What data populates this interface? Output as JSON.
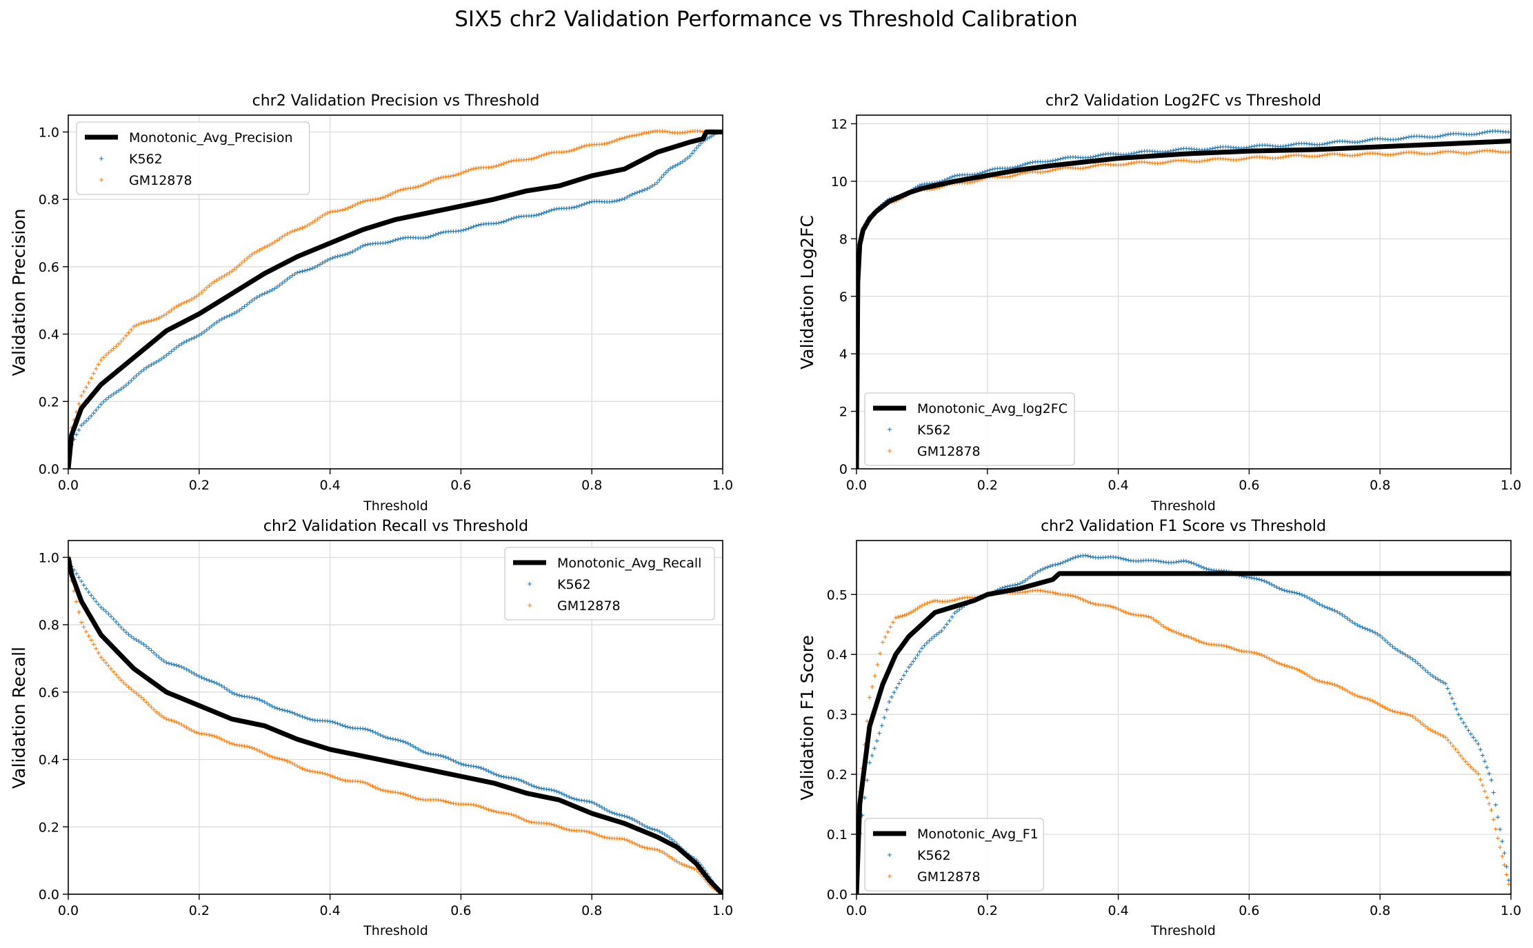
{
  "figure": {
    "suptitle": "SIX5 chr2 Validation Performance vs Threshold Calibration"
  },
  "colors": {
    "k562": "#1f77b4",
    "gm12878": "#ff7f0e",
    "avg": "#000000",
    "grid": "#d9d9d9"
  },
  "chart_data": [
    {
      "type": "scatter",
      "title": "chr2 Validation Precision vs Threshold",
      "xlabel": "Threshold",
      "ylabel": "Validation Precision",
      "xlim": [
        0,
        1
      ],
      "ylim": [
        0,
        1.05
      ],
      "xticks": [
        "0.0",
        "0.2",
        "0.4",
        "0.6",
        "0.8",
        "1.0"
      ],
      "yticks": [
        "0.0",
        "0.2",
        "0.4",
        "0.6",
        "0.8",
        "1.0"
      ],
      "grid": true,
      "legend_position": "upper-left",
      "series": [
        {
          "name": "Monotonic_Avg_Precision",
          "style": "line",
          "x": [
            0,
            0.005,
            0.02,
            0.05,
            0.1,
            0.15,
            0.2,
            0.25,
            0.3,
            0.35,
            0.4,
            0.45,
            0.5,
            0.55,
            0.6,
            0.65,
            0.7,
            0.75,
            0.8,
            0.85,
            0.9,
            0.95,
            0.97,
            0.975,
            1.0
          ],
          "y": [
            0,
            0.1,
            0.18,
            0.25,
            0.33,
            0.41,
            0.46,
            0.52,
            0.58,
            0.63,
            0.67,
            0.71,
            0.74,
            0.76,
            0.78,
            0.8,
            0.825,
            0.84,
            0.87,
            0.89,
            0.94,
            0.97,
            0.98,
            1.0,
            1.0
          ]
        },
        {
          "name": "K562",
          "style": "points",
          "x": [
            0,
            0.005,
            0.02,
            0.05,
            0.1,
            0.15,
            0.2,
            0.25,
            0.3,
            0.35,
            0.4,
            0.45,
            0.5,
            0.55,
            0.6,
            0.65,
            0.7,
            0.75,
            0.8,
            0.85,
            0.9,
            0.92,
            0.95,
            0.97,
            0.99
          ],
          "y": [
            0,
            0.07,
            0.13,
            0.19,
            0.27,
            0.34,
            0.4,
            0.46,
            0.52,
            0.58,
            0.62,
            0.66,
            0.68,
            0.69,
            0.71,
            0.73,
            0.75,
            0.77,
            0.79,
            0.8,
            0.85,
            0.89,
            0.93,
            0.97,
            1.0
          ]
        },
        {
          "name": "GM12878",
          "style": "points",
          "x": [
            0,
            0.005,
            0.02,
            0.05,
            0.1,
            0.15,
            0.2,
            0.25,
            0.3,
            0.35,
            0.4,
            0.45,
            0.5,
            0.55,
            0.6,
            0.65,
            0.7,
            0.75,
            0.8,
            0.85,
            0.88,
            0.9,
            0.95,
            1.0
          ],
          "y": [
            0,
            0.12,
            0.22,
            0.32,
            0.42,
            0.46,
            0.52,
            0.59,
            0.66,
            0.71,
            0.76,
            0.79,
            0.82,
            0.85,
            0.88,
            0.9,
            0.92,
            0.94,
            0.96,
            0.98,
            1.0,
            1.0,
            1.0,
            1.0
          ]
        }
      ]
    },
    {
      "type": "scatter",
      "title": "chr2 Validation Log2FC vs Threshold",
      "xlabel": "Threshold",
      "ylabel": "Validation Log2FC",
      "xlim": [
        0,
        1
      ],
      "ylim": [
        0,
        12.3
      ],
      "xticks": [
        "0.0",
        "0.2",
        "0.4",
        "0.6",
        "0.8",
        "1.0"
      ],
      "yticks": [
        "0",
        "2",
        "4",
        "6",
        "8",
        "10",
        "12"
      ],
      "grid": true,
      "legend_position": "lower-left",
      "series": [
        {
          "name": "Monotonic_Avg_log2FC",
          "style": "line",
          "x": [
            0,
            0.002,
            0.005,
            0.01,
            0.02,
            0.03,
            0.05,
            0.08,
            0.1,
            0.15,
            0.2,
            0.25,
            0.3,
            0.4,
            0.5,
            0.6,
            0.7,
            0.8,
            0.9,
            1.0
          ],
          "y": [
            0,
            6.5,
            7.8,
            8.3,
            8.7,
            8.95,
            9.3,
            9.6,
            9.75,
            10.0,
            10.2,
            10.4,
            10.55,
            10.8,
            10.95,
            11.05,
            11.1,
            11.2,
            11.3,
            11.4
          ]
        },
        {
          "name": "K562",
          "style": "points",
          "x": [
            0,
            0.002,
            0.005,
            0.01,
            0.02,
            0.03,
            0.05,
            0.08,
            0.1,
            0.15,
            0.2,
            0.25,
            0.3,
            0.4,
            0.5,
            0.6,
            0.7,
            0.8,
            0.9,
            1.0
          ],
          "y": [
            0,
            6.8,
            7.9,
            8.4,
            8.8,
            9.0,
            9.35,
            9.65,
            9.85,
            10.15,
            10.35,
            10.55,
            10.75,
            10.95,
            11.1,
            11.2,
            11.3,
            11.45,
            11.6,
            11.75
          ]
        },
        {
          "name": "GM12878",
          "style": "points",
          "x": [
            0,
            0.002,
            0.005,
            0.01,
            0.02,
            0.03,
            0.05,
            0.08,
            0.1,
            0.15,
            0.2,
            0.25,
            0.3,
            0.4,
            0.5,
            0.6,
            0.7,
            0.8,
            0.9,
            1.0
          ],
          "y": [
            0,
            6.4,
            7.7,
            8.25,
            8.65,
            8.9,
            9.25,
            9.55,
            9.7,
            9.9,
            10.1,
            10.25,
            10.4,
            10.6,
            10.7,
            10.8,
            10.9,
            10.95,
            11.0,
            11.05
          ]
        }
      ]
    },
    {
      "type": "scatter",
      "title": "chr2 Validation Recall vs Threshold",
      "xlabel": "Threshold",
      "ylabel": "Validation Recall",
      "xlim": [
        0,
        1
      ],
      "ylim": [
        0,
        1.05
      ],
      "xticks": [
        "0.0",
        "0.2",
        "0.4",
        "0.6",
        "0.8",
        "1.0"
      ],
      "yticks": [
        "0.0",
        "0.2",
        "0.4",
        "0.6",
        "0.8",
        "1.0"
      ],
      "grid": true,
      "legend_position": "upper-right",
      "series": [
        {
          "name": "Monotonic_Avg_Recall",
          "style": "line",
          "x": [
            0,
            0.005,
            0.02,
            0.05,
            0.1,
            0.15,
            0.2,
            0.25,
            0.3,
            0.35,
            0.4,
            0.45,
            0.5,
            0.55,
            0.6,
            0.65,
            0.7,
            0.75,
            0.8,
            0.85,
            0.9,
            0.93,
            0.96,
            0.98,
            1.0
          ],
          "y": [
            1.0,
            0.95,
            0.87,
            0.77,
            0.67,
            0.6,
            0.56,
            0.52,
            0.5,
            0.46,
            0.43,
            0.41,
            0.39,
            0.37,
            0.35,
            0.33,
            0.3,
            0.28,
            0.24,
            0.21,
            0.17,
            0.14,
            0.09,
            0.04,
            0.0
          ]
        },
        {
          "name": "K562",
          "style": "points",
          "x": [
            0,
            0.005,
            0.02,
            0.05,
            0.1,
            0.15,
            0.2,
            0.25,
            0.3,
            0.35,
            0.4,
            0.45,
            0.5,
            0.55,
            0.6,
            0.65,
            0.7,
            0.75,
            0.8,
            0.85,
            0.9,
            0.93,
            0.96,
            0.98,
            1.0
          ],
          "y": [
            1.0,
            0.97,
            0.93,
            0.85,
            0.76,
            0.69,
            0.65,
            0.6,
            0.57,
            0.53,
            0.51,
            0.49,
            0.46,
            0.42,
            0.39,
            0.36,
            0.33,
            0.3,
            0.27,
            0.23,
            0.19,
            0.15,
            0.1,
            0.05,
            0.0
          ]
        },
        {
          "name": "GM12878",
          "style": "points",
          "x": [
            0,
            0.005,
            0.02,
            0.05,
            0.1,
            0.15,
            0.2,
            0.25,
            0.3,
            0.35,
            0.4,
            0.45,
            0.5,
            0.55,
            0.6,
            0.65,
            0.7,
            0.75,
            0.8,
            0.85,
            0.9,
            0.93,
            0.96,
            0.98,
            1.0
          ],
          "y": [
            1.0,
            0.93,
            0.81,
            0.7,
            0.6,
            0.52,
            0.48,
            0.45,
            0.42,
            0.38,
            0.35,
            0.33,
            0.3,
            0.28,
            0.27,
            0.25,
            0.22,
            0.2,
            0.18,
            0.16,
            0.13,
            0.1,
            0.07,
            0.03,
            0.0
          ]
        }
      ]
    },
    {
      "type": "scatter",
      "title": "chr2 Validation F1 Score vs Threshold",
      "xlabel": "Threshold",
      "ylabel": "Validation F1 Score",
      "xlim": [
        0,
        1
      ],
      "ylim": [
        0,
        0.59
      ],
      "xticks": [
        "0.0",
        "0.2",
        "0.4",
        "0.6",
        "0.8",
        "1.0"
      ],
      "yticks": [
        "0.0",
        "0.1",
        "0.2",
        "0.3",
        "0.4",
        "0.5"
      ],
      "grid": true,
      "legend_position": "lower-left",
      "series": [
        {
          "name": "Monotonic_Avg_F1",
          "style": "line",
          "x": [
            0,
            0.005,
            0.02,
            0.04,
            0.06,
            0.08,
            0.1,
            0.12,
            0.15,
            0.18,
            0.2,
            0.25,
            0.3,
            0.31,
            0.5,
            0.7,
            0.9,
            1.0
          ],
          "y": [
            0,
            0.15,
            0.28,
            0.35,
            0.4,
            0.43,
            0.45,
            0.47,
            0.48,
            0.49,
            0.5,
            0.51,
            0.525,
            0.535,
            0.535,
            0.535,
            0.535,
            0.535
          ]
        },
        {
          "name": "K562",
          "style": "points",
          "x": [
            0,
            0.005,
            0.02,
            0.05,
            0.08,
            0.1,
            0.13,
            0.15,
            0.18,
            0.2,
            0.25,
            0.3,
            0.35,
            0.4,
            0.45,
            0.5,
            0.55,
            0.6,
            0.65,
            0.7,
            0.75,
            0.8,
            0.85,
            0.9,
            0.92,
            0.95,
            0.97,
            0.98,
            0.99,
            1.0
          ],
          "y": [
            0,
            0.1,
            0.22,
            0.32,
            0.38,
            0.41,
            0.44,
            0.47,
            0.49,
            0.5,
            0.52,
            0.55,
            0.565,
            0.56,
            0.555,
            0.555,
            0.54,
            0.53,
            0.51,
            0.49,
            0.46,
            0.43,
            0.39,
            0.35,
            0.3,
            0.25,
            0.19,
            0.13,
            0.07,
            0.0
          ]
        },
        {
          "name": "GM12878",
          "style": "points",
          "x": [
            0,
            0.005,
            0.02,
            0.04,
            0.06,
            0.08,
            0.1,
            0.12,
            0.15,
            0.2,
            0.25,
            0.3,
            0.35,
            0.4,
            0.45,
            0.5,
            0.55,
            0.6,
            0.65,
            0.7,
            0.75,
            0.8,
            0.85,
            0.9,
            0.95,
            0.97,
            0.99,
            1.0
          ],
          "y": [
            0,
            0.17,
            0.33,
            0.42,
            0.46,
            0.47,
            0.48,
            0.49,
            0.49,
            0.5,
            0.505,
            0.505,
            0.49,
            0.475,
            0.46,
            0.43,
            0.415,
            0.405,
            0.385,
            0.36,
            0.34,
            0.315,
            0.295,
            0.26,
            0.2,
            0.14,
            0.05,
            0.0
          ]
        }
      ]
    }
  ]
}
